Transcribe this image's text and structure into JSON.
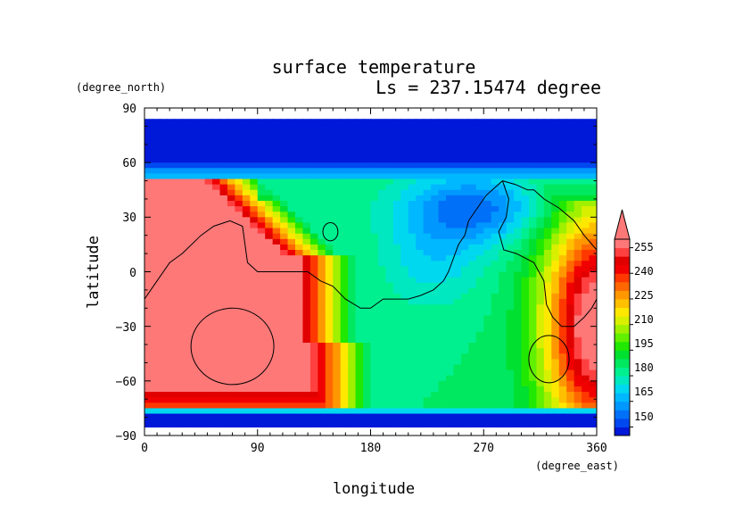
{
  "chart_data": {
    "type": "heatmap",
    "title": "surface temperature",
    "subtitle": "Ls = 237.15474 degree",
    "xlabel": "longitude",
    "ylabel": "latitude",
    "xunit": "(degree_east)",
    "yunit": "(degree_north)",
    "xlim": [
      0,
      360
    ],
    "ylim": [
      -90,
      90
    ],
    "xticks": [
      0,
      90,
      180,
      270,
      360
    ],
    "yticks": [
      90,
      60,
      30,
      0,
      -30,
      -60,
      -90
    ],
    "x_tick_labels": [
      "0",
      "90",
      "180",
      "270",
      "360"
    ],
    "y_tick_labels": [
      "90",
      "60",
      "30",
      "0",
      "−30",
      "−60",
      "−90"
    ],
    "colorbar": {
      "tick_labels": [
        "255",
        "240",
        "225",
        "210",
        "195",
        "180",
        "165",
        "150"
      ],
      "tick_values": [
        255,
        240,
        225,
        210,
        195,
        180,
        165,
        150
      ],
      "levels": [
        145,
        150,
        155,
        160,
        165,
        170,
        175,
        180,
        185,
        190,
        195,
        200,
        205,
        210,
        215,
        220,
        225,
        230,
        235,
        240,
        245,
        250,
        255,
        260
      ],
      "colors": [
        "#0018d8",
        "#0048f0",
        "#0070f8",
        "#0098ff",
        "#00b8ff",
        "#00d8f0",
        "#00e8c0",
        "#00f090",
        "#00e860",
        "#00e030",
        "#20e800",
        "#60f000",
        "#a0f000",
        "#d8f000",
        "#ffe800",
        "#ffc000",
        "#ff9800",
        "#ff6800",
        "#ff3800",
        "#f00000",
        "#e00000",
        "#ff4040",
        "#ff7878"
      ],
      "extend": "max"
    },
    "field_description": [
      {
        "region": "southern high latitudes (-90 to -75)",
        "value": 147
      },
      {
        "region": "northern high latitudes (60 to 90)",
        "value": 147
      },
      {
        "region": "southern warm region lon 0-120, lat -70 to 25",
        "value": 262
      },
      {
        "region": "mid-basin lon 200-300, lat -40 to 20",
        "value": 190
      },
      {
        "region": "northern lowlands lon 200-300, lat 20 to 50",
        "value": 157
      }
    ]
  }
}
